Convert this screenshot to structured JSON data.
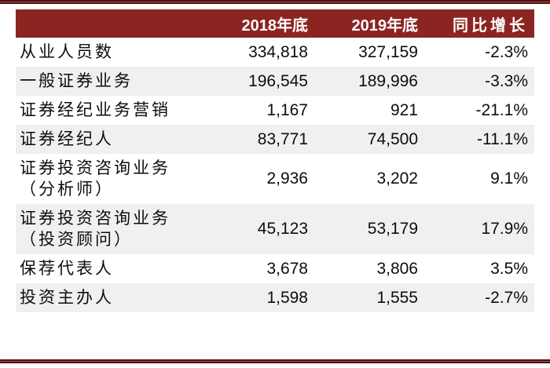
{
  "colors": {
    "header_bg": "#8B2522",
    "header_text": "#FFFFFF",
    "stripe_bg": "#F0F0F0",
    "rule_dark": "#4E0E0E",
    "rule_mid": "#A85A5A",
    "body_text": "#0D0D0D"
  },
  "chart_data": {
    "type": "table",
    "title": "",
    "columns": [
      "",
      "2018年底",
      "2019年底",
      "同比增长"
    ],
    "rows": [
      {
        "label": "从业人员数",
        "cells": [
          "334,818",
          "327,159",
          "-2.3%"
        ]
      },
      {
        "label": "一般证券业务",
        "cells": [
          "196,545",
          "189,996",
          "-3.3%"
        ]
      },
      {
        "label": "证券经纪业务营销",
        "cells": [
          "1,167",
          "921",
          "-21.1%"
        ]
      },
      {
        "label": "证券经纪人",
        "cells": [
          "83,771",
          "74,500",
          "-11.1%"
        ]
      },
      {
        "label": "证券投资咨询业务\n（分析师）",
        "cells": [
          "2,936",
          "3,202",
          "9.1%"
        ]
      },
      {
        "label": "证券投资咨询业务\n（投资顾问）",
        "cells": [
          "45,123",
          "53,179",
          "17.9%"
        ]
      },
      {
        "label": "保荐代表人",
        "cells": [
          "3,678",
          "3,806",
          "3.5%"
        ]
      },
      {
        "label": "投资主办人",
        "cells": [
          "1,598",
          "1,555",
          "-2.7%"
        ]
      }
    ]
  }
}
